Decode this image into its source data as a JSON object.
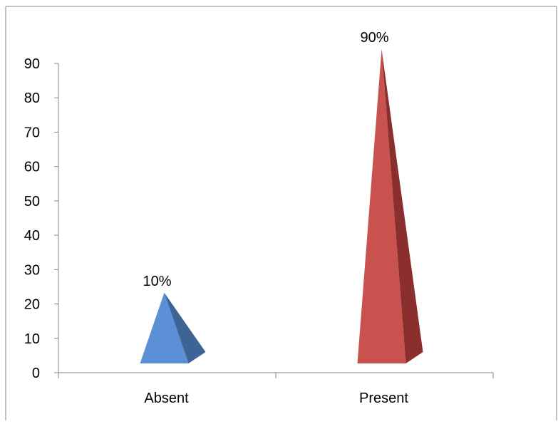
{
  "chart_data": {
    "type": "bar",
    "subtype": "3d-pyramid",
    "categories": [
      "Absent",
      "Present"
    ],
    "values": [
      10,
      90
    ],
    "data_labels": [
      "10%",
      "90%"
    ],
    "colors": [
      "#5B8FD6",
      "#C0504D"
    ],
    "yticks": [
      0,
      10,
      20,
      30,
      40,
      50,
      60,
      70,
      80,
      90
    ],
    "ylim": [
      0,
      90
    ],
    "grid": false,
    "legend": "none"
  },
  "style": {
    "border_color": "#868686",
    "axis_color": "#868686",
    "bar_shades": [
      {
        "front": "#5B8FD6",
        "side": "#3E6496"
      },
      {
        "front": "#C9524F",
        "side": "#8A2F2D"
      }
    ]
  }
}
